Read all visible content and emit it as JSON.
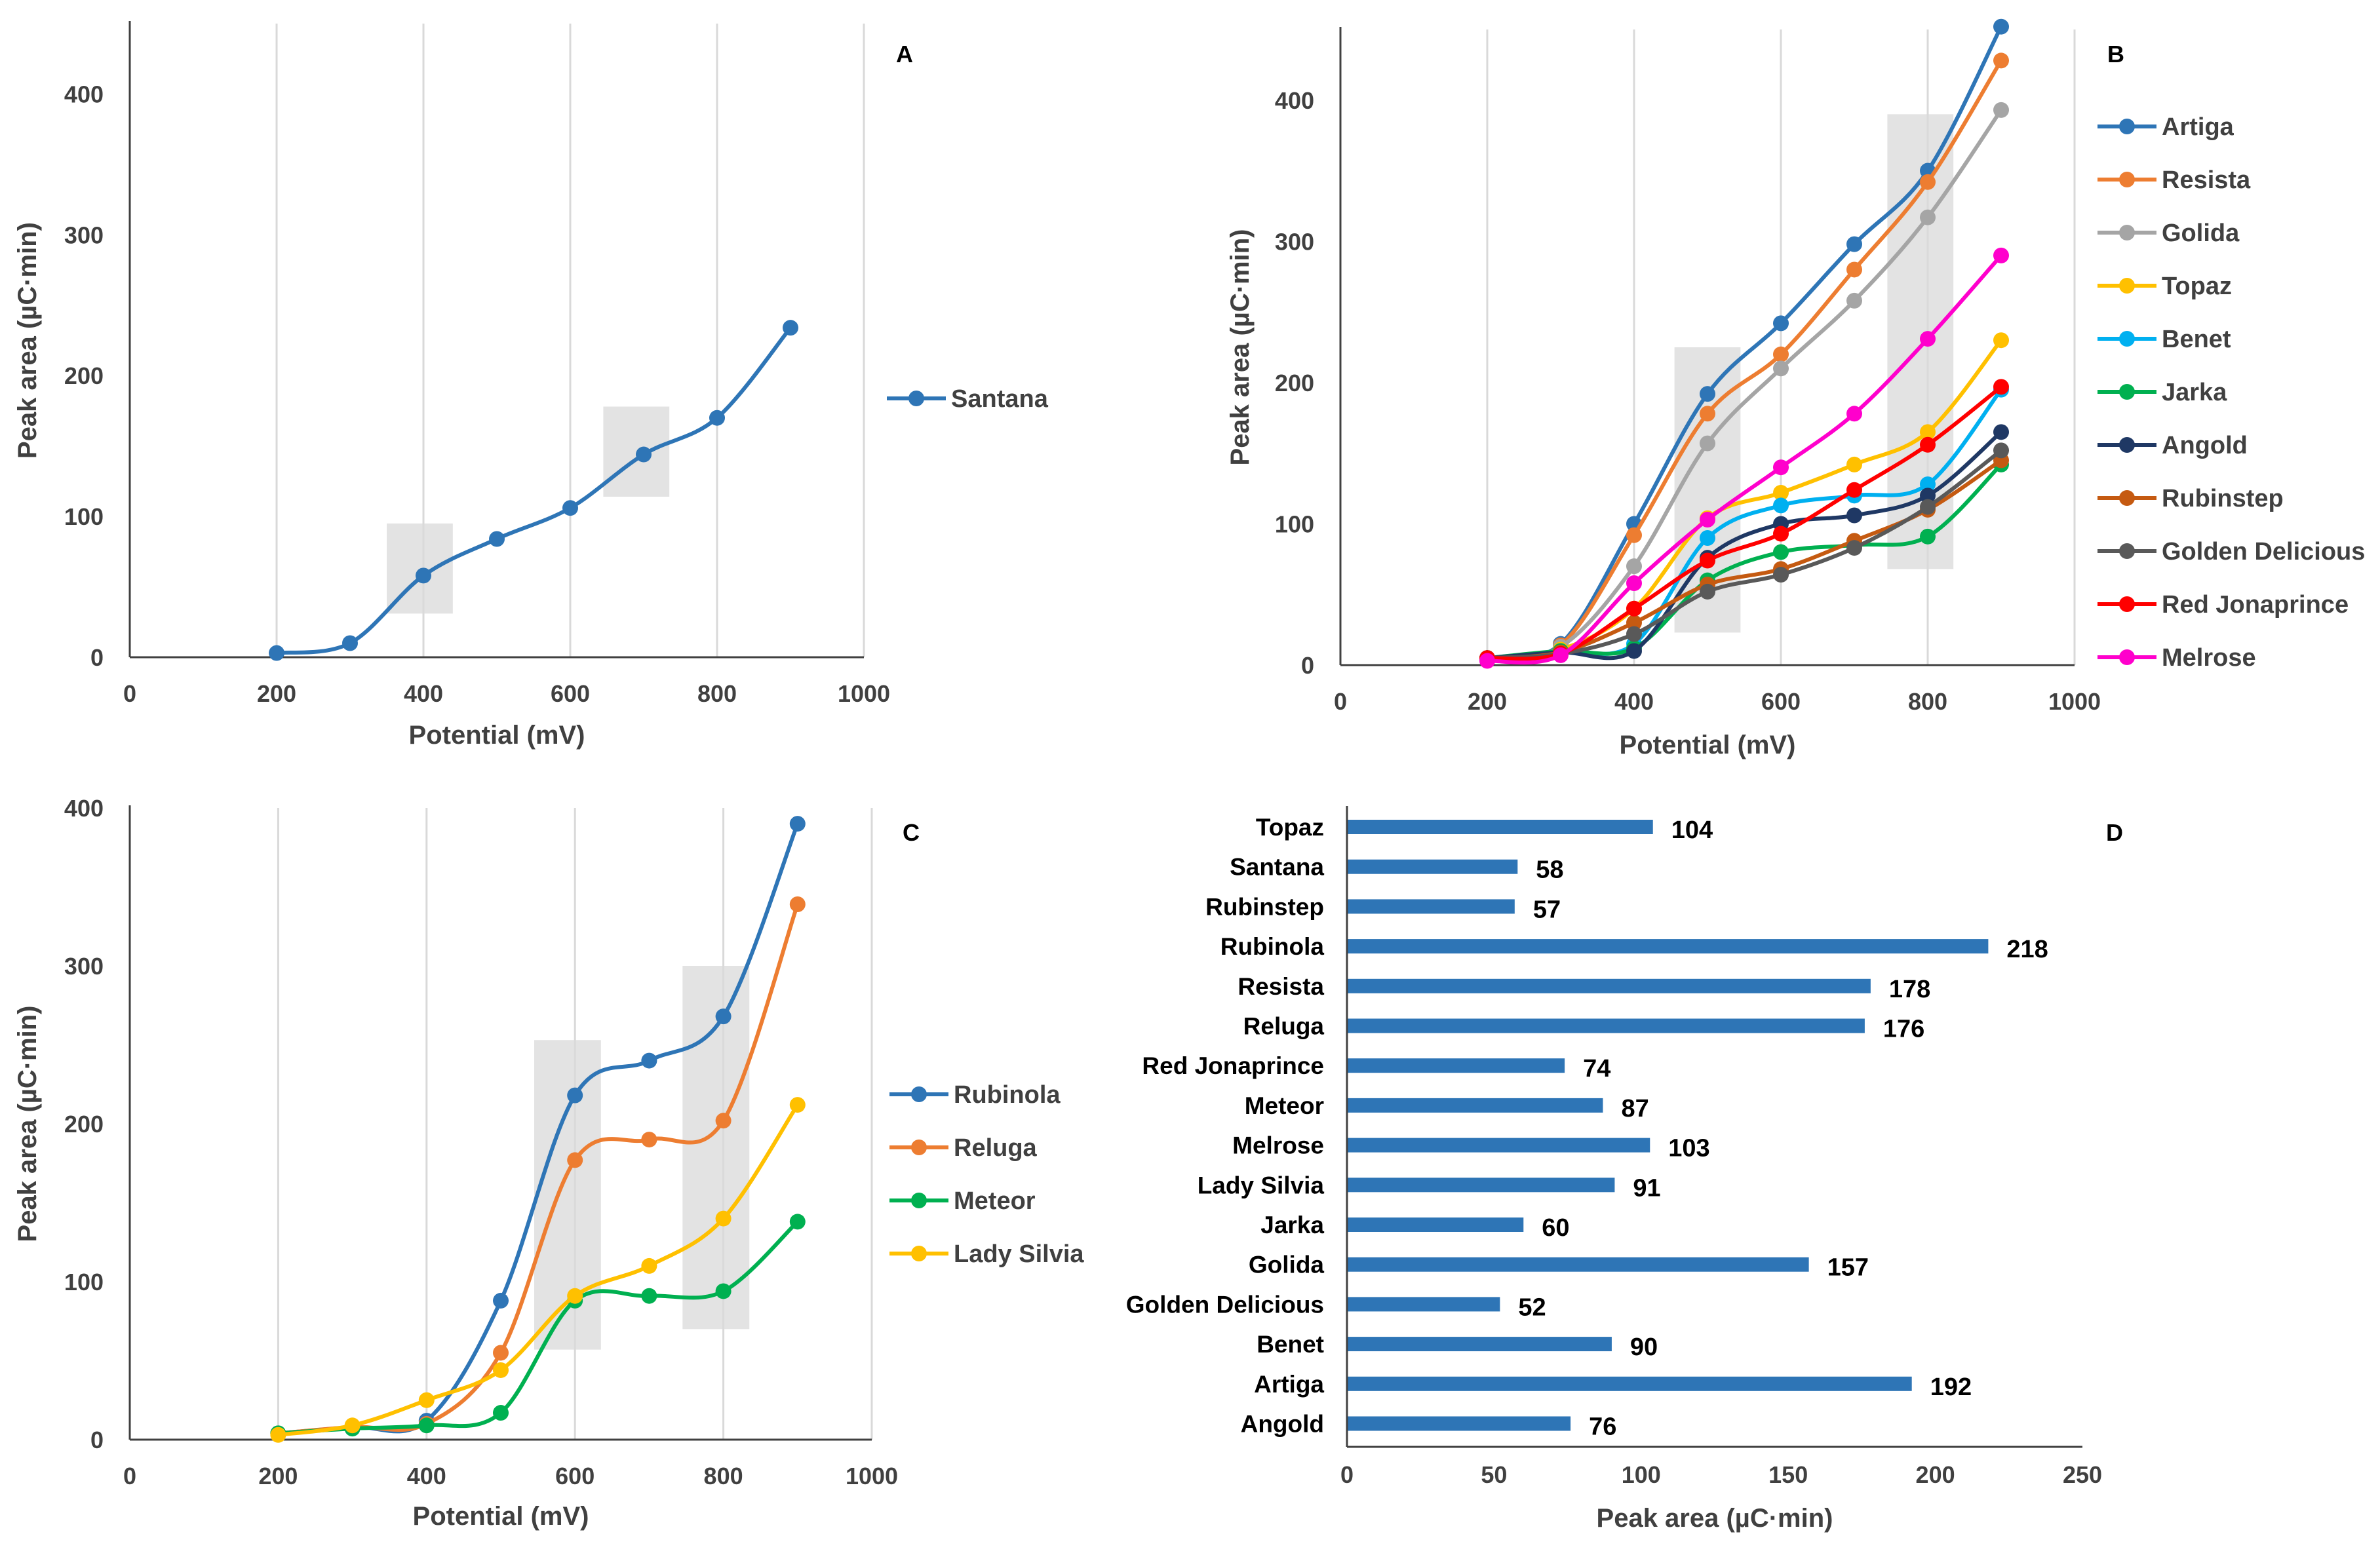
{
  "chart_data": [
    {
      "panel": "A",
      "type": "line",
      "xlabel": "Potential (mV)",
      "ylabel": "Peak area (µC·min)",
      "xlim": [
        0,
        1000
      ],
      "ylim": [
        0,
        450
      ],
      "xticks": [
        0,
        200,
        400,
        600,
        800,
        1000
      ],
      "yticks": [
        0,
        100,
        200,
        300,
        400
      ],
      "grid": "vertical",
      "legend": "right",
      "x": [
        200,
        300,
        400,
        500,
        600,
        700,
        800,
        900
      ],
      "series": [
        {
          "name": "Santana",
          "color": "#2E75B6",
          "values": [
            3,
            10,
            58,
            84,
            106,
            144,
            170,
            234
          ]
        }
      ],
      "highlights": [
        {
          "x": [
            350,
            440
          ],
          "y": [
            31,
            95
          ]
        },
        {
          "x": [
            645,
            735
          ],
          "y": [
            114,
            178
          ]
        }
      ]
    },
    {
      "panel": "B",
      "type": "line",
      "xlabel": "Potential (mV)",
      "ylabel": "Peak area (µC·min)",
      "xlim": [
        0,
        1000
      ],
      "ylim": [
        0,
        450
      ],
      "xticks": [
        0,
        200,
        400,
        600,
        800,
        1000
      ],
      "yticks": [
        0,
        100,
        200,
        300,
        400
      ],
      "grid": "vertical",
      "legend": "right",
      "x": [
        200,
        300,
        400,
        500,
        600,
        700,
        800,
        900
      ],
      "series": [
        {
          "name": "Artiga",
          "color": "#2E75B6",
          "values": [
            5,
            15,
            100,
            192,
            242,
            298,
            350,
            452
          ]
        },
        {
          "name": "Resista",
          "color": "#ED7D31",
          "values": [
            5,
            14,
            92,
            178,
            220,
            280,
            342,
            428
          ]
        },
        {
          "name": "Golida",
          "color": "#A5A5A5",
          "values": [
            5,
            13,
            70,
            157,
            210,
            258,
            317,
            393
          ]
        },
        {
          "name": "Topaz",
          "color": "#FFC000",
          "values": [
            5,
            11,
            40,
            104,
            122,
            142,
            165,
            230
          ]
        },
        {
          "name": "Benet",
          "color": "#00B0F0",
          "values": [
            5,
            10,
            15,
            90,
            113,
            120,
            128,
            195
          ]
        },
        {
          "name": "Jarka",
          "color": "#00B050",
          "values": [
            5,
            10,
            12,
            60,
            80,
            85,
            91,
            142
          ]
        },
        {
          "name": "Angold",
          "color": "#1F3864",
          "values": [
            5,
            9,
            10,
            76,
            100,
            106,
            120,
            165
          ]
        },
        {
          "name": "Rubinstep",
          "color": "#C55A11",
          "values": [
            5,
            9,
            30,
            57,
            68,
            88,
            110,
            145
          ]
        },
        {
          "name": "Golden Delicious",
          "color": "#595959",
          "values": [
            5,
            8,
            22,
            52,
            64,
            83,
            112,
            152
          ]
        },
        {
          "name": "Red Jonaprince",
          "color": "#FF0000",
          "values": [
            5,
            8,
            40,
            74,
            93,
            124,
            156,
            197
          ]
        },
        {
          "name": "Melrose",
          "color": "#FF00CC",
          "values": [
            3,
            7,
            58,
            103,
            140,
            178,
            231,
            290
          ]
        }
      ],
      "highlights": [
        {
          "x": [
            455,
            545
          ],
          "y": [
            23,
            225
          ]
        },
        {
          "x": [
            745,
            835
          ],
          "y": [
            68,
            390
          ]
        }
      ]
    },
    {
      "panel": "C",
      "type": "line",
      "xlabel": "Potential (mV)",
      "ylabel": "Peak area (µC·min)",
      "xlim": [
        0,
        1000
      ],
      "ylim": [
        0,
        400
      ],
      "xticks": [
        0,
        200,
        400,
        600,
        800,
        1000
      ],
      "yticks": [
        0,
        100,
        200,
        300,
        400
      ],
      "grid": "vertical",
      "legend": "right",
      "x": [
        200,
        300,
        400,
        500,
        600,
        700,
        800,
        900
      ],
      "series": [
        {
          "name": "Rubinola",
          "color": "#2E75B6",
          "values": [
            4,
            8,
            12,
            88,
            218,
            240,
            268,
            390
          ]
        },
        {
          "name": "Reluga",
          "color": "#ED7D31",
          "values": [
            4,
            8,
            10,
            55,
            177,
            190,
            202,
            339
          ]
        },
        {
          "name": "Meteor",
          "color": "#00B050",
          "values": [
            4,
            7,
            9,
            17,
            88,
            91,
            94,
            138
          ]
        },
        {
          "name": "Lady Silvia",
          "color": "#FFC000",
          "values": [
            3,
            9,
            25,
            44,
            91,
            110,
            140,
            212
          ]
        }
      ],
      "highlights": [
        {
          "x": [
            545,
            635
          ],
          "y": [
            57,
            253
          ]
        },
        {
          "x": [
            745,
            835
          ],
          "y": [
            70,
            300
          ]
        }
      ]
    },
    {
      "panel": "D",
      "type": "bar",
      "orientation": "horizontal",
      "xlabel": "Peak area (µC·min)",
      "xlim": [
        0,
        250
      ],
      "xticks": [
        0,
        50,
        100,
        150,
        200,
        250
      ],
      "color": "#2E75B6",
      "categories": [
        "Topaz",
        "Santana",
        "Rubinstep",
        "Rubinola",
        "Resista",
        "Reluga",
        "Red Jonaprince",
        "Meteor",
        "Melrose",
        "Lady Silvia",
        "Jarka",
        "Golida",
        "Golden Delicious",
        "Benet",
        "Artiga",
        "Angold"
      ],
      "values": [
        104,
        58,
        57,
        218,
        178,
        176,
        74,
        87,
        103,
        91,
        60,
        157,
        52,
        90,
        192,
        76
      ]
    }
  ]
}
